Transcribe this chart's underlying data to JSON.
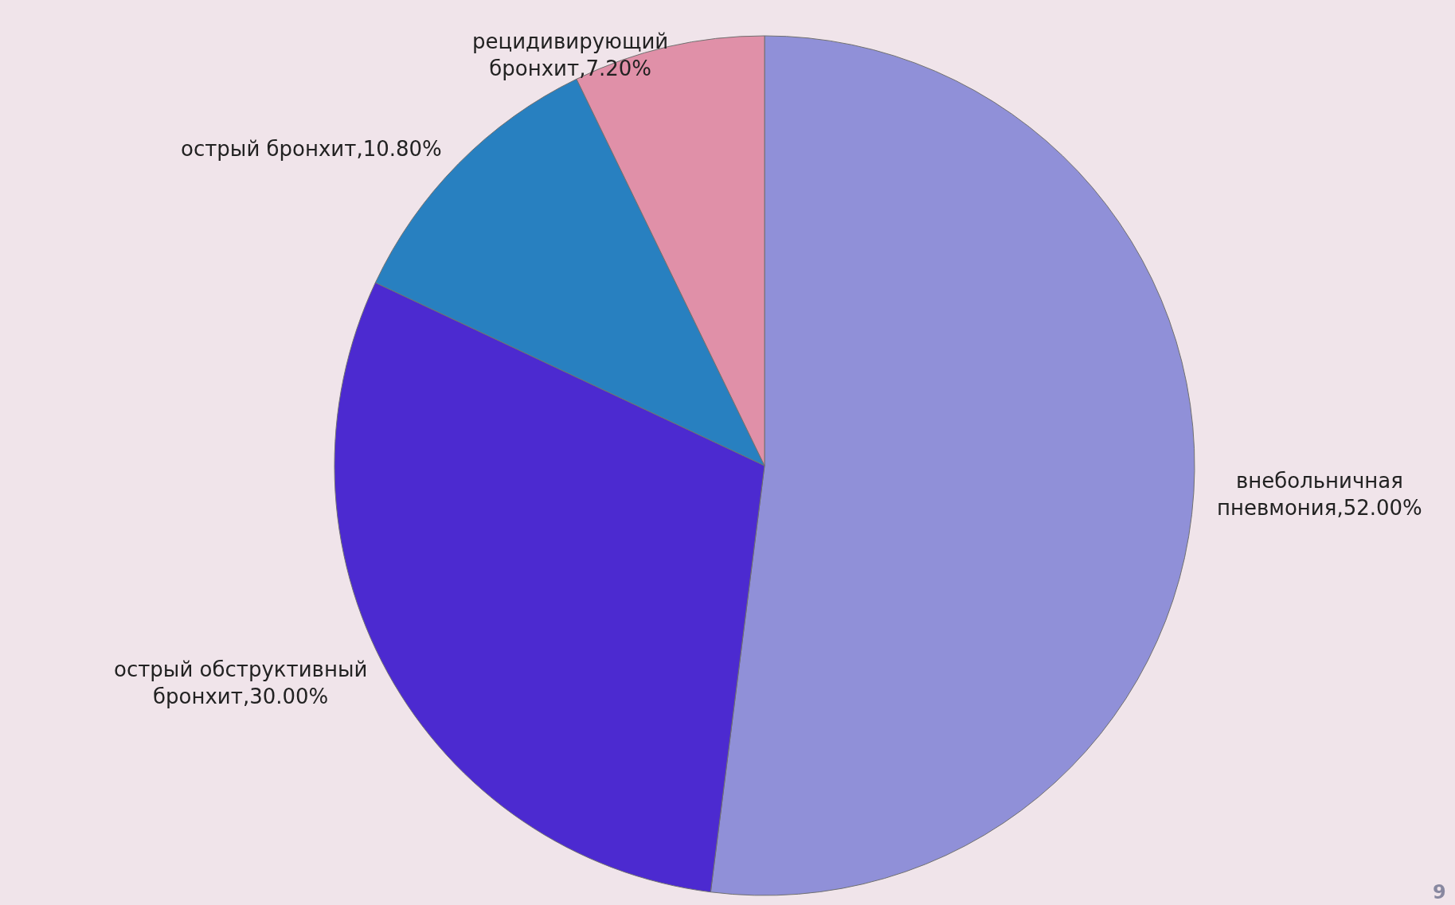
{
  "chart_data": {
    "type": "pie",
    "categories": [
      "внебольничная пневмония",
      "острый обструктивный бронхит",
      "острый бронхит",
      "рецидивирующий бронхит"
    ],
    "values": [
      52.0,
      30.0,
      10.8,
      7.2
    ],
    "value_labels": [
      "52.00%",
      "30.00%",
      "10.80%",
      "7.20%"
    ],
    "colors": [
      "#9090d8",
      "#4c2ad0",
      "#2880c0",
      "#e090a8"
    ],
    "annotations": [
      "9"
    ],
    "legend": false
  }
}
